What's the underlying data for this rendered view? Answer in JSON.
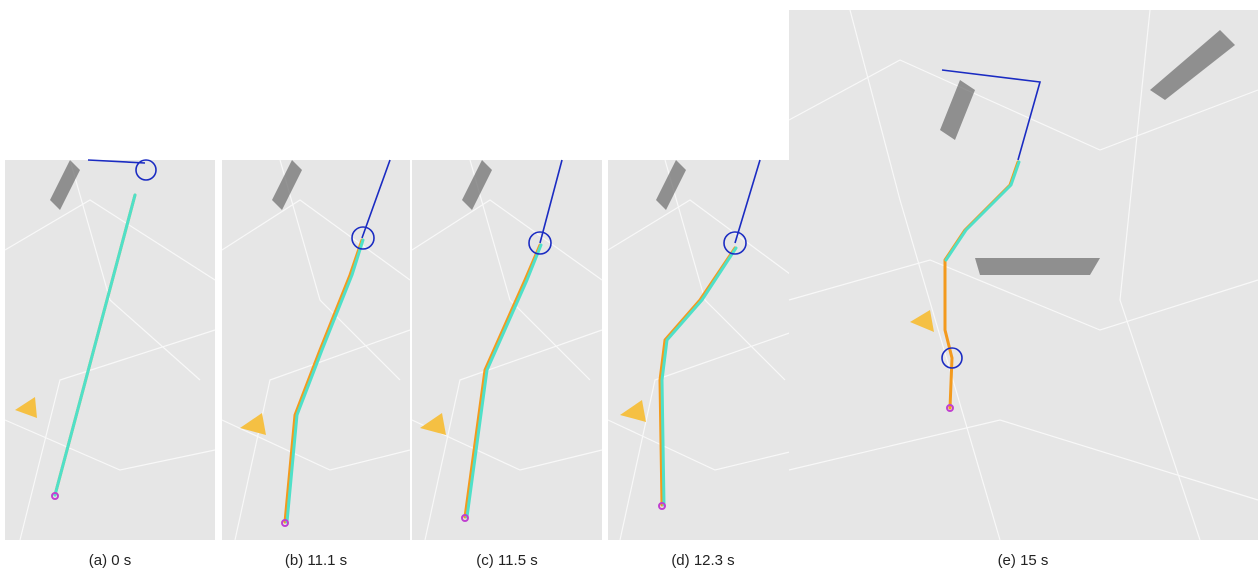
{
  "panels": [
    {
      "caption": "(a) 0 s"
    },
    {
      "caption": "(b) 11.1 s"
    },
    {
      "caption": "(c) 11.5 s"
    },
    {
      "caption": "(d) 12.3 s"
    },
    {
      "caption": "(e) 15 s"
    }
  ]
}
